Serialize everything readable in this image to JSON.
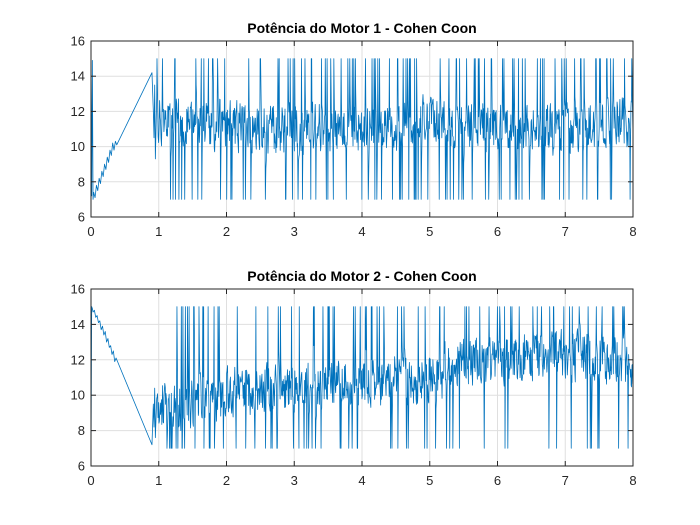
{
  "chart_data": [
    {
      "type": "line",
      "title": "Potência do Motor 1 - Cohen Coon",
      "xlabel": "",
      "ylabel": "",
      "xlim": [
        0,
        8
      ],
      "ylim": [
        6,
        16
      ],
      "xticks": [
        0,
        1,
        2,
        3,
        4,
        5,
        6,
        7,
        8
      ],
      "yticks": [
        6,
        8,
        10,
        12,
        14,
        16
      ],
      "grid": true,
      "color": "#0072BD",
      "series": [
        {
          "x": [
            0.0,
            0.01,
            0.02,
            0.03,
            0.04,
            0.06,
            0.08,
            0.1,
            0.12,
            0.14,
            0.16,
            0.18,
            0.2,
            0.22,
            0.24,
            0.26,
            0.28,
            0.3,
            0.32,
            0.34,
            0.36,
            0.38,
            0.9,
            0.92,
            0.93,
            0.94,
            0.95,
            0.97
          ],
          "y": [
            15.0,
            7.2,
            14.9,
            7.0,
            7.4,
            7.1,
            7.8,
            7.5,
            8.2,
            7.9,
            8.6,
            8.3,
            9.0,
            8.7,
            9.4,
            9.1,
            9.8,
            9.5,
            10.2,
            9.8,
            10.3,
            10.1,
            14.2,
            12.0,
            10.5,
            13.5,
            9.3,
            12.8
          ]
        }
      ]
    },
    {
      "type": "line",
      "title": "Potência do Motor 2 - Cohen Coon",
      "xlabel": "",
      "ylabel": "",
      "xlim": [
        0,
        8
      ],
      "ylim": [
        6,
        16
      ],
      "xticks": [
        0,
        1,
        2,
        3,
        4,
        5,
        6,
        7,
        8
      ],
      "yticks": [
        6,
        8,
        10,
        12,
        14,
        16
      ],
      "grid": true,
      "color": "#0072BD",
      "series": [
        {
          "x": [
            0.0,
            0.01,
            0.02,
            0.03,
            0.05,
            0.07,
            0.09,
            0.11,
            0.13,
            0.15,
            0.17,
            0.19,
            0.21,
            0.23,
            0.25,
            0.27,
            0.29,
            0.31,
            0.33,
            0.35,
            0.37,
            0.9,
            0.92,
            0.93,
            0.94,
            0.95,
            0.97
          ],
          "y": [
            6.1,
            15.0,
            14.9,
            14.7,
            14.8,
            14.4,
            14.5,
            14.1,
            14.2,
            13.7,
            13.9,
            13.4,
            13.6,
            13.0,
            13.2,
            12.7,
            12.8,
            12.3,
            12.5,
            11.9,
            12.1,
            7.2,
            9.5,
            8.2,
            10.4,
            7.6,
            9.8
          ]
        }
      ]
    }
  ]
}
